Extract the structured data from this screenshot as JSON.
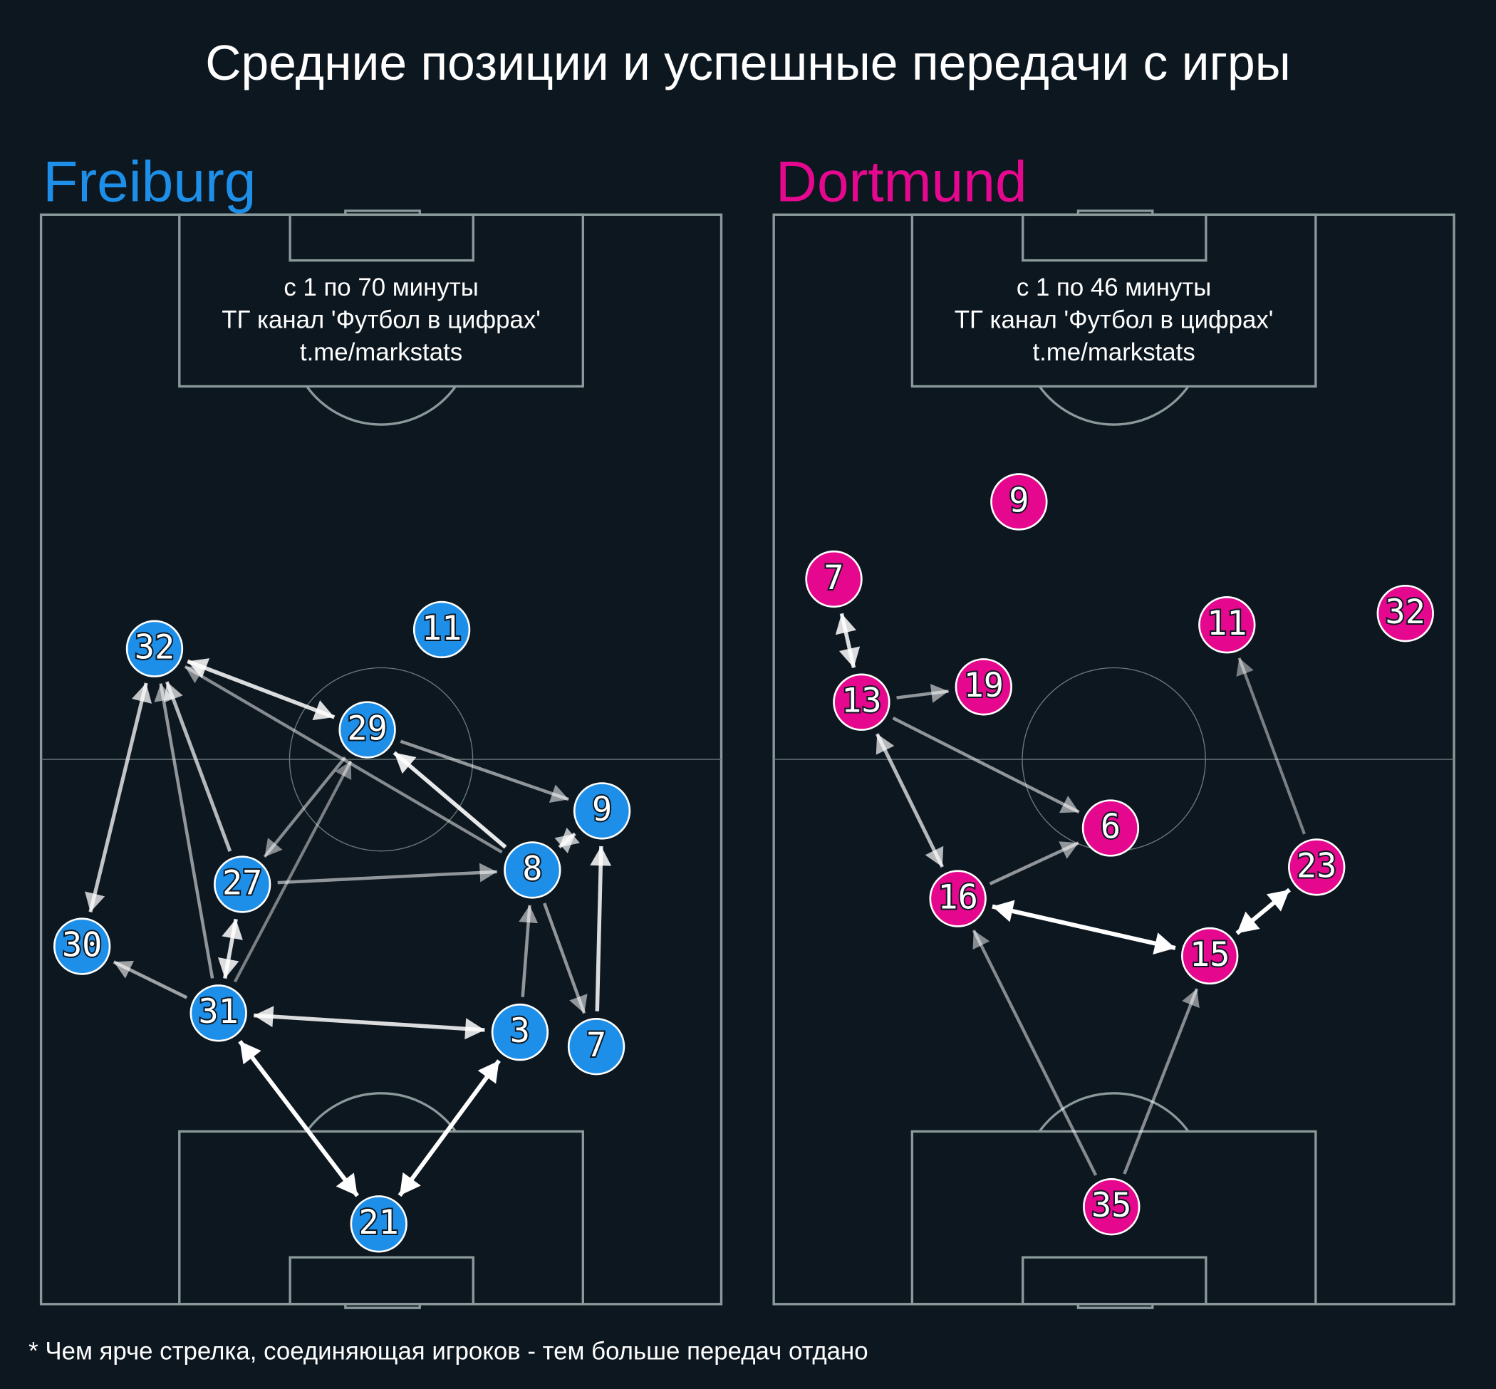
{
  "title": "Средние позиции и успешные передачи с игры",
  "teams": [
    {
      "name": "Freiburg",
      "color": "#1e8fe8",
      "note": [
        "с 1 по 70 минуты",
        "ТГ канал 'Футбол в цифрах'",
        "t.me/markstats"
      ],
      "players": [
        "32",
        "11",
        "29",
        "9",
        "8",
        "27",
        "30",
        "31",
        "3",
        "7",
        "21"
      ]
    },
    {
      "name": "Dortmund",
      "color": "#e5088e",
      "note": [
        "с 1 по 46 минуты",
        "ТГ канал 'Футбол в цифрах'",
        "t.me/markstats"
      ],
      "players": [
        "9",
        "7",
        "11",
        "32",
        "13",
        "19",
        "6",
        "16",
        "23",
        "15",
        "35"
      ]
    }
  ],
  "footnote": "* Чем ярче стрелка, соединяющая игроков - тем больше передач отдано"
}
